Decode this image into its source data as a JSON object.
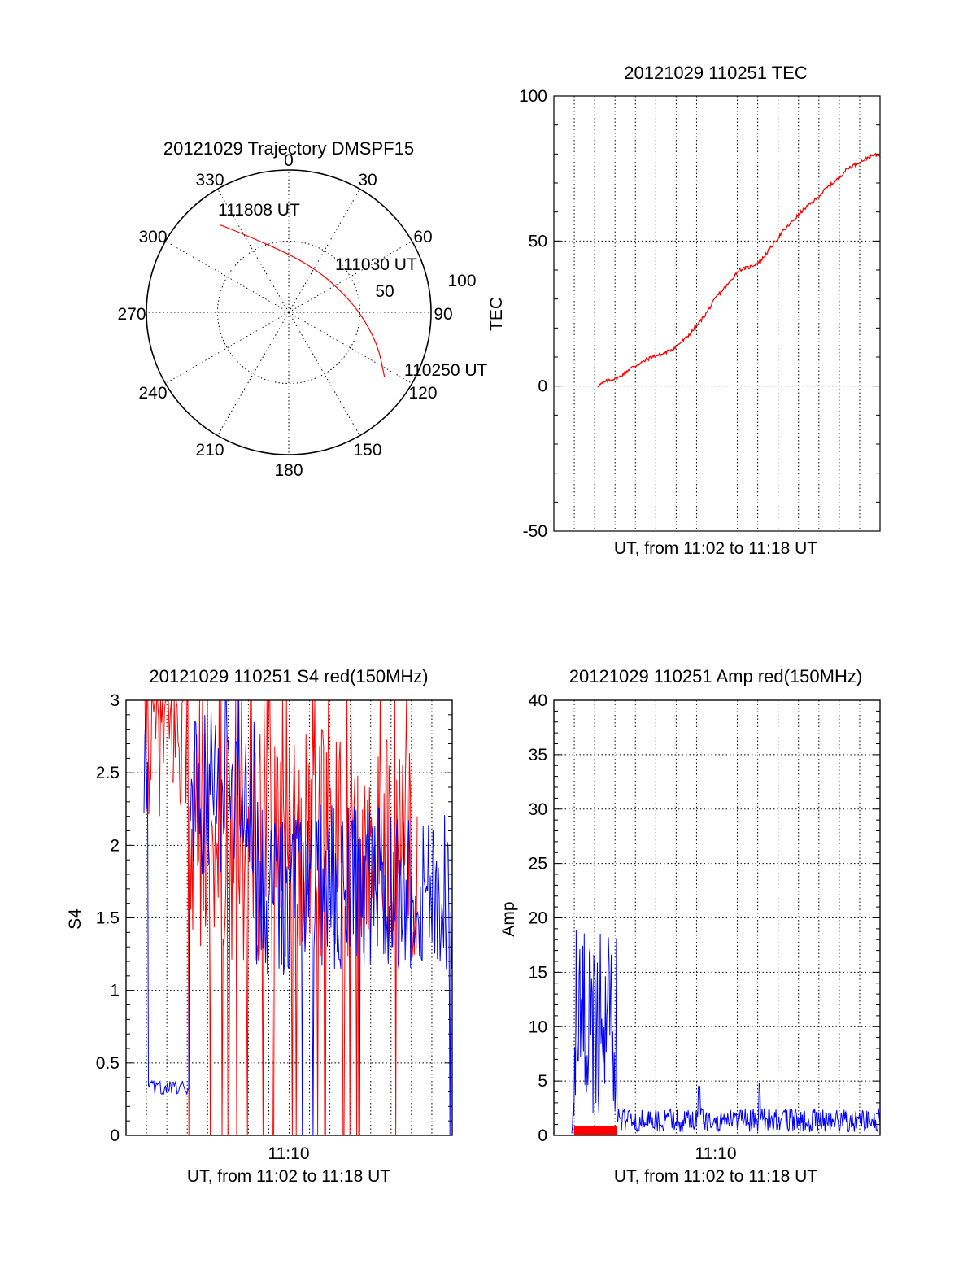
{
  "colors": {
    "red": "#ff0000",
    "blue": "#0000ff",
    "axis": "#000000"
  },
  "chart_data": [
    {
      "type": "scatter",
      "polar": true,
      "title": "20121029 Trajectory DMSPF15",
      "angle_labels": [
        "0",
        "30",
        "60",
        "90",
        "120",
        "150",
        "180",
        "210",
        "240",
        "270",
        "300",
        "330"
      ],
      "radial_labels": [
        "50",
        "100"
      ],
      "trajectory": [
        {
          "az": 124,
          "el": 17,
          "label": "110250 UT"
        },
        {
          "az": 110,
          "el": 30
        },
        {
          "az": 90,
          "el": 45
        },
        {
          "az": 65,
          "el": 55,
          "label": "111030 UT"
        },
        {
          "az": 35,
          "el": 58
        },
        {
          "az": 0,
          "el": 53
        },
        {
          "az": 330,
          "el": 33
        },
        {
          "az": 322,
          "el": 20,
          "label": "111808 UT"
        }
      ],
      "series_color": "#ff0000"
    },
    {
      "type": "line",
      "title": "20121029 110251 TEC",
      "xlabel": "UT, from 11:02 to 11:18 UT",
      "ylabel": "TEC",
      "ylim": [
        -50,
        100
      ],
      "yticks": [
        "-50",
        "0",
        "50",
        "100"
      ],
      "xlim": [
        11.0,
        11.3
      ],
      "x": [
        11.04,
        11.05,
        11.06,
        11.07,
        11.08,
        11.09,
        11.1,
        11.11,
        11.12,
        11.13,
        11.14,
        11.15,
        11.16,
        11.17,
        11.18,
        11.19,
        11.2,
        11.21,
        11.22,
        11.23,
        11.24,
        11.25,
        11.26,
        11.27,
        11.28,
        11.29,
        11.3
      ],
      "y": [
        0,
        2,
        3,
        6,
        8,
        10,
        11,
        13,
        16,
        20,
        25,
        31,
        35,
        40,
        41,
        43,
        48,
        53,
        57,
        61,
        64,
        68,
        71,
        75,
        77,
        79,
        80
      ],
      "series_color": "#ff0000",
      "grid": true
    },
    {
      "type": "line",
      "title": "20121029 110251 S4 red(150MHz)",
      "xlabel": "UT, from 11:02 to 11:18 UT",
      "ylabel": "S4",
      "ylim": [
        0,
        3
      ],
      "yticks": [
        "0",
        "0.5",
        "1",
        "1.5",
        "2",
        "2.5",
        "3"
      ],
      "xtick_label": "11:10",
      "series": [
        {
          "color": "#ff0000",
          "note_levels": [
            2.6,
            1.8,
            1.7,
            1.6
          ]
        },
        {
          "color": "#0000ff",
          "note_levels": [
            0.35,
            2.2,
            1.8,
            1.6
          ]
        }
      ],
      "grid": true
    },
    {
      "type": "line",
      "title": "20121029 110251 Amp red(150MHz)",
      "xlabel": "UT, from 11:02 to 11:18 UT",
      "ylabel": "Amp",
      "ylim": [
        0,
        40
      ],
      "yticks": [
        "0",
        "5",
        "10",
        "15",
        "20",
        "25",
        "30",
        "35",
        "40"
      ],
      "xtick_label": "11:10",
      "series": [
        {
          "color": "#ff0000",
          "level": 0.5
        },
        {
          "color": "#0000ff",
          "burst_level": 16,
          "baseline_level": 1.2
        }
      ],
      "grid": true
    }
  ]
}
